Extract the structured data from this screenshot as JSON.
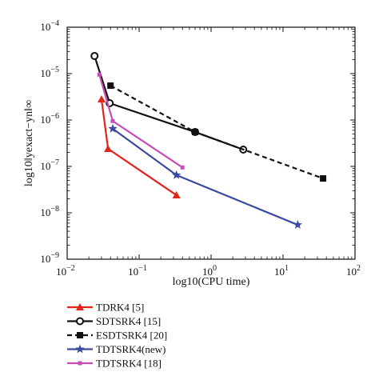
{
  "chart_data": {
    "type": "line",
    "title": "",
    "xlabel": "log10(CPU time)",
    "ylabel": "log10‖yexact−yn‖∞",
    "xscale": "log",
    "yscale": "log",
    "xlim": [
      0.01,
      100
    ],
    "ylim": [
      1e-09,
      0.0001
    ],
    "x_ticks": [
      {
        "value": 0.01,
        "base": "10",
        "exp": "−2"
      },
      {
        "value": 0.1,
        "base": "10",
        "exp": "−1"
      },
      {
        "value": 1,
        "base": "10",
        "exp": "0"
      },
      {
        "value": 10,
        "base": "10",
        "exp": "1"
      },
      {
        "value": 100,
        "base": "10",
        "exp": "2"
      }
    ],
    "y_ticks": [
      {
        "value": 1e-09,
        "base": "10",
        "exp": "−9"
      },
      {
        "value": 1e-08,
        "base": "10",
        "exp": "−8"
      },
      {
        "value": 1e-07,
        "base": "10",
        "exp": "−7"
      },
      {
        "value": 1e-06,
        "base": "10",
        "exp": "−6"
      },
      {
        "value": 1e-05,
        "base": "10",
        "exp": "−5"
      },
      {
        "value": 0.0001,
        "base": "10",
        "exp": "−4"
      }
    ],
    "legend_position": "below",
    "series": [
      {
        "name": "TDRK4 [5]",
        "color": "#e3241b",
        "marker": "triangle",
        "dashed": false,
        "x": [
          0.03,
          0.037,
          0.33
        ],
        "y": [
          2.8e-06,
          2.4e-07,
          2.4e-08
        ]
      },
      {
        "name": "SDTSRK4 [15]",
        "color": "#111111",
        "marker": "circle",
        "dashed": false,
        "x": [
          0.024,
          0.039,
          0.6,
          2.8
        ],
        "y": [
          2.4e-05,
          2.3e-06,
          5.5e-07,
          2.3e-07
        ]
      },
      {
        "name": "ESDTSRK4 [20]",
        "color": "#111111",
        "marker": "square",
        "dashed": true,
        "x": [
          0.04,
          0.6,
          36
        ],
        "y": [
          5.5e-06,
          5.5e-07,
          5.5e-08
        ]
      },
      {
        "name": "TDTSRK4(new)",
        "color": "#3b4aa0",
        "marker": "star",
        "dashed": false,
        "x": [
          0.043,
          0.33,
          16
        ],
        "y": [
          6.5e-07,
          6.5e-08,
          5.5e-09
        ]
      },
      {
        "name": "TDTSRK4 [18]",
        "color": "#c64fb7",
        "marker": "smallsquare",
        "dashed": false,
        "x": [
          0.028,
          0.043,
          0.4
        ],
        "y": [
          9.5e-06,
          9.5e-07,
          9.5e-08
        ]
      }
    ]
  }
}
